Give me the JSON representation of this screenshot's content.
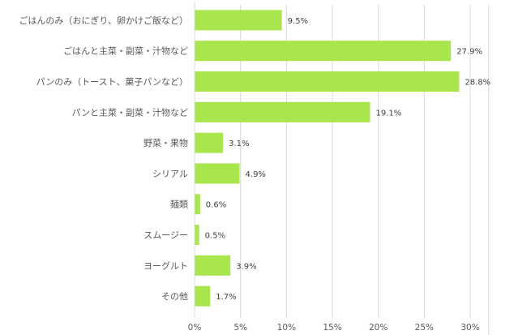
{
  "chart_data": {
    "type": "bar",
    "orientation": "horizontal",
    "title": "",
    "xlabel": "",
    "ylabel": "",
    "categories": [
      "ごはんのみ（おにぎり、卵かけご飯など）",
      "ごはんと主菜・副菜・汁物など",
      "パンのみ（トースト、菓子パンなど）",
      "パンと主菜・副菜・汁物など",
      "野菜・果物",
      "シリアル",
      "麺類",
      "スムージー",
      "ヨーグルト",
      "その他"
    ],
    "values": [
      9.5,
      27.9,
      28.8,
      19.1,
      3.1,
      4.9,
      0.6,
      0.5,
      3.9,
      1.7
    ],
    "value_labels": [
      "9.5%",
      "27.9%",
      "28.8%",
      "19.1%",
      "3.1%",
      "4.9%",
      "0.6%",
      "0.5%",
      "3.9%",
      "1.7%"
    ],
    "xlim": [
      0,
      32
    ],
    "xticks": [
      0,
      5,
      10,
      15,
      20,
      25,
      30
    ],
    "xtick_labels": [
      "0%",
      "5%",
      "10%",
      "15%",
      "20%",
      "25%",
      "30%"
    ],
    "grid": true,
    "bar_color": "#a9e64e"
  }
}
